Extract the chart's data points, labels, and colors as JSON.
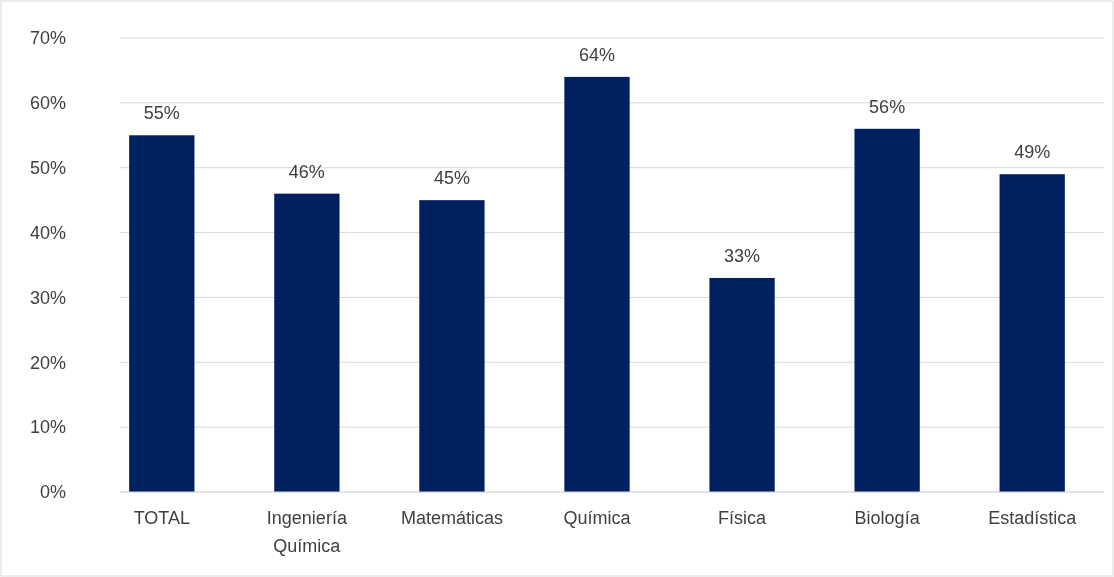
{
  "chart_data": {
    "type": "bar",
    "categories": [
      "TOTAL",
      "Ingeniería Química",
      "Matemáticas",
      "Química",
      "Física",
      "Biología",
      "Estadística"
    ],
    "values": [
      55,
      46,
      45,
      64,
      33,
      56,
      49
    ],
    "value_labels": [
      "55%",
      "46%",
      "45%",
      "64%",
      "33%",
      "56%",
      "49%"
    ],
    "color": "#002060",
    "ylim": [
      0,
      70
    ],
    "yticks": [
      {
        "value": 0,
        "label": "0%"
      },
      {
        "value": 10,
        "label": "10%"
      },
      {
        "value": 20,
        "label": "20%"
      },
      {
        "value": 30,
        "label": "30%"
      },
      {
        "value": 40,
        "label": "40%"
      },
      {
        "value": 50,
        "label": "50%"
      },
      {
        "value": 60,
        "label": "60%"
      },
      {
        "value": 70,
        "label": "70%"
      }
    ],
    "grid": "y"
  }
}
